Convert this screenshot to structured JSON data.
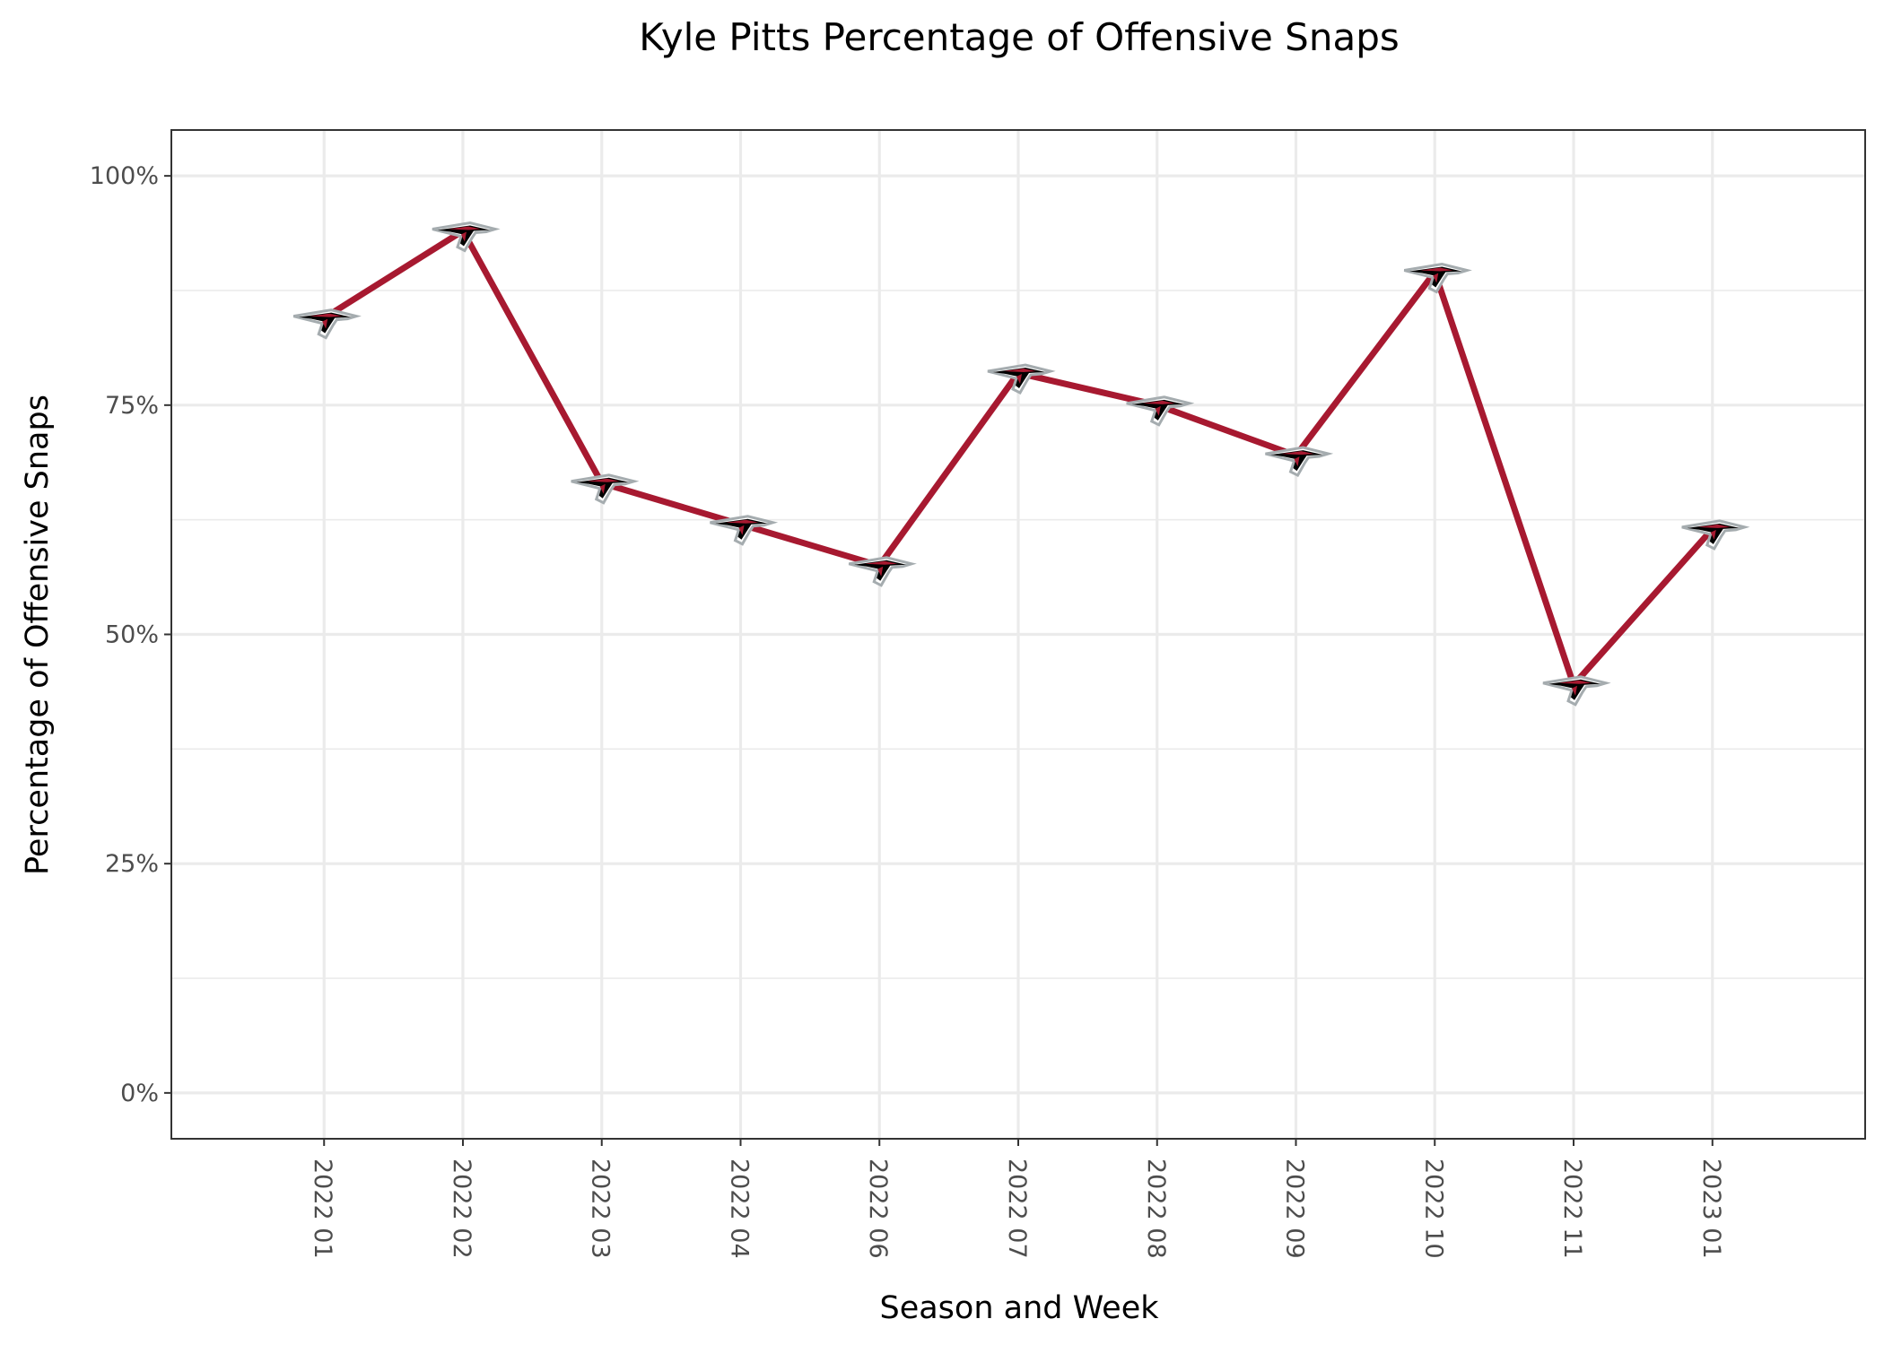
{
  "chart_data": {
    "type": "line",
    "title": "Kyle Pitts Percentage of Offensive Snaps",
    "xlabel": "Season and Week",
    "ylabel": "Percentage of Offensive Snaps",
    "categories": [
      "2022 01",
      "2022 02",
      "2022 03",
      "2022 04",
      "2022 06",
      "2022 07",
      "2022 08",
      "2022 09",
      "2022 10",
      "2022 11",
      "2023 01"
    ],
    "values": [
      84.5,
      94.0,
      66.5,
      62.0,
      57.5,
      78.5,
      75.0,
      69.5,
      89.5,
      44.5,
      61.5
    ],
    "ylim": [
      -5,
      105
    ],
    "yticks": [
      0,
      25,
      50,
      75,
      100
    ],
    "ytick_labels": [
      "0%",
      "25%",
      "50%",
      "75%",
      "100%"
    ],
    "grid": true,
    "line_color": "#A71930",
    "marker": "falcons-logo-icon"
  }
}
